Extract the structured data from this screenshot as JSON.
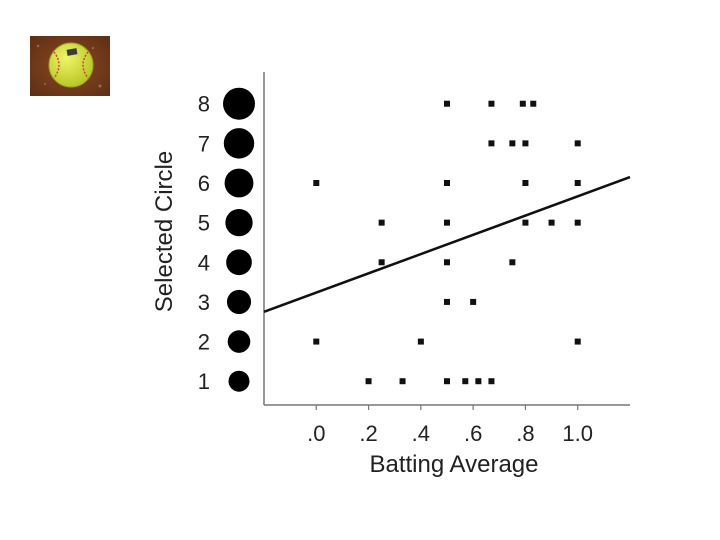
{
  "thumbnail": {
    "icon": "softball-icon",
    "ball_color": "#d8e63c",
    "dirt_color": "#7a3f1f"
  },
  "chart_data": {
    "type": "scatter",
    "xlabel": "Batting Average",
    "ylabel": "Selected Circle",
    "xlim": [
      -0.2,
      1.2
    ],
    "ylim": [
      0.4,
      8.8
    ],
    "x_ticks": [
      0.0,
      0.2,
      0.4,
      0.6,
      0.8,
      1.0
    ],
    "x_tick_labels": [
      ".0",
      ".2",
      ".4",
      ".6",
      ".8",
      "1.0"
    ],
    "y_ticks": [
      1,
      2,
      3,
      4,
      5,
      6,
      7,
      8
    ],
    "y_tick_labels": [
      "1",
      "2",
      "3",
      "4",
      "5",
      "6",
      "7",
      "8"
    ],
    "circle_sizes": [
      1,
      2,
      3,
      4,
      5,
      6,
      7,
      8
    ],
    "points": [
      {
        "x": 0.5,
        "y": 8
      },
      {
        "x": 0.67,
        "y": 8
      },
      {
        "x": 0.79,
        "y": 8
      },
      {
        "x": 0.83,
        "y": 8
      },
      {
        "x": 0.67,
        "y": 7
      },
      {
        "x": 0.75,
        "y": 7
      },
      {
        "x": 0.8,
        "y": 7
      },
      {
        "x": 1.0,
        "y": 7
      },
      {
        "x": 0.0,
        "y": 6
      },
      {
        "x": 0.5,
        "y": 6
      },
      {
        "x": 0.8,
        "y": 6
      },
      {
        "x": 1.0,
        "y": 6
      },
      {
        "x": 0.25,
        "y": 5
      },
      {
        "x": 0.5,
        "y": 5
      },
      {
        "x": 0.8,
        "y": 5
      },
      {
        "x": 0.9,
        "y": 5
      },
      {
        "x": 1.0,
        "y": 5
      },
      {
        "x": 0.25,
        "y": 4
      },
      {
        "x": 0.5,
        "y": 4
      },
      {
        "x": 0.75,
        "y": 4
      },
      {
        "x": 0.5,
        "y": 3
      },
      {
        "x": 0.6,
        "y": 3
      },
      {
        "x": 0.0,
        "y": 2
      },
      {
        "x": 0.4,
        "y": 2
      },
      {
        "x": 1.0,
        "y": 2
      },
      {
        "x": 0.2,
        "y": 1
      },
      {
        "x": 0.33,
        "y": 1
      },
      {
        "x": 0.5,
        "y": 1
      },
      {
        "x": 0.57,
        "y": 1
      },
      {
        "x": 0.62,
        "y": 1
      },
      {
        "x": 0.67,
        "y": 1
      }
    ],
    "regression_line": {
      "x": [
        -0.2,
        1.2
      ],
      "y": [
        2.75,
        6.15
      ]
    },
    "colors": {
      "points": "#111111",
      "line": "#111111",
      "circles": "#000000"
    }
  }
}
